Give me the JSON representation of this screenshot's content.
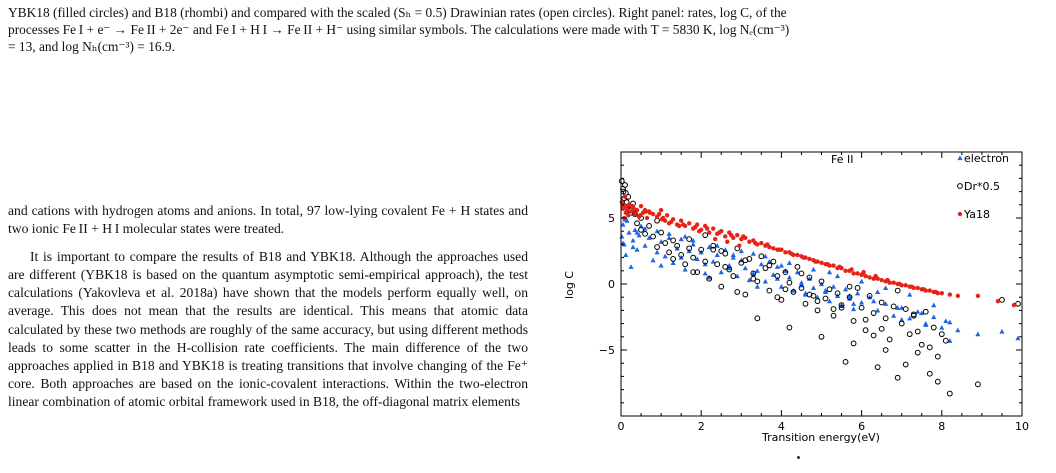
{
  "caption": {
    "line1": "YBK18 (filled circles) and B18 (rhombi) and compared with the scaled (Sₕ = 0.5) Drawinian rates (open circles). Right panel: rates, log C, of the",
    "line2": "processes Fe I + e⁻ → Fe II + 2e⁻ and Fe I + H I → Fe II + H⁻ using similar symbols. The calculations were made with T = 5830 K, log Nₑ(cm⁻³)",
    "line3": "= 13, and log Nₕ(cm⁻³) = 16.9."
  },
  "body": {
    "para1": "and cations with hydrogen atoms and anions. In total, 97 low-lying covalent Fe + H states and two ionic Fe II + H I molecular states were treated.",
    "para2": "It is important to compare the results of B18 and YBK18. Although the approaches used are different (YBK18 is based on the quantum asymptotic semi-empirical approach), the test calculations (Yakovleva et al. 2018a) have shown that the models perform equally well, on average. This does not mean that the results are identical. This means that atomic data calculated by these two methods are roughly of the same accuracy, but using different methods leads to some scatter in the H-collision rate coefficients. The main difference of the two approaches applied in B18 and YBK18 is treating transitions that involve changing of the Fe⁺ core. Both approaches are based on the ionic-covalent interactions. Within the two-electron linear combination of atomic orbital framework used in B18, the off-diagonal matrix elements"
  },
  "chart_data": {
    "type": "scatter",
    "title": "",
    "annotation": "Fe II",
    "xlabel": "Transition energy(eV)",
    "ylabel": "log C",
    "xlim": [
      0,
      10
    ],
    "ylim": [
      -10,
      10
    ],
    "xticks": [
      "0",
      "2",
      "4",
      "6",
      "8",
      "10"
    ],
    "yticks": [
      "5",
      "0",
      "−5"
    ],
    "legend_position": "top-right",
    "grid": false,
    "series": [
      {
        "name": "electron",
        "marker": "triangle",
        "color": "#1f66e5",
        "x": [
          0.02,
          0.05,
          0.08,
          0.12,
          0.15,
          0.2,
          0.25,
          0.3,
          0.35,
          0.4,
          0.45,
          0.5,
          0.6,
          0.7,
          0.8,
          0.9,
          1.0,
          1.1,
          1.2,
          1.3,
          1.4,
          1.5,
          1.6,
          1.7,
          1.8,
          1.9,
          2.0,
          2.1,
          2.2,
          2.3,
          2.4,
          2.5,
          2.6,
          2.7,
          2.8,
          2.9,
          3.0,
          3.1,
          3.2,
          3.3,
          3.4,
          3.5,
          3.6,
          3.7,
          3.8,
          3.9,
          4.0,
          4.1,
          4.2,
          4.3,
          4.4,
          4.5,
          4.6,
          4.7,
          4.8,
          4.9,
          5.0,
          5.1,
          5.2,
          5.3,
          5.4,
          5.5,
          5.6,
          5.7,
          5.8,
          5.9,
          6.0,
          6.2,
          6.4,
          6.6,
          6.8,
          7.0,
          7.2,
          7.4,
          7.6,
          7.8,
          8.0,
          8.2,
          8.4,
          8.9,
          9.5,
          9.9,
          0.1,
          0.3,
          0.6,
          0.9,
          1.2,
          1.5,
          1.8,
          2.1,
          2.4,
          2.7,
          3.0,
          3.3,
          3.6,
          3.9,
          4.2,
          4.5,
          4.8,
          5.1,
          5.4,
          5.7,
          6.0,
          6.3,
          6.6,
          6.9,
          7.2,
          7.5,
          7.8,
          8.1,
          0.05,
          0.4,
          1.0,
          1.6,
          2.2,
          2.8,
          3.4,
          4.0,
          4.6,
          5.2,
          5.8,
          6.4,
          7.0,
          7.6,
          8.2
        ],
        "y": [
          3.6,
          4.5,
          3.0,
          2.2,
          4.8,
          3.9,
          1.3,
          3.3,
          4.1,
          2.6,
          3.7,
          4.4,
          2.9,
          3.5,
          1.8,
          4.0,
          3.2,
          2.1,
          3.8,
          1.6,
          2.7,
          3.4,
          1.1,
          2.5,
          3.0,
          1.9,
          2.4,
          0.8,
          2.8,
          1.7,
          2.2,
          0.9,
          2.6,
          1.4,
          2.0,
          0.6,
          1.8,
          1.2,
          0.3,
          2.3,
          1.0,
          1.5,
          0.2,
          1.7,
          0.7,
          1.3,
          -0.2,
          1.0,
          0.5,
          -0.5,
          0.9,
          0.1,
          -0.7,
          0.4,
          -0.3,
          -1.0,
          0.0,
          -0.6,
          -1.3,
          -0.2,
          -0.9,
          -1.6,
          -0.4,
          -1.1,
          -1.9,
          -0.7,
          -1.4,
          -1.0,
          -2.0,
          -1.5,
          -2.4,
          -1.8,
          -2.6,
          -2.1,
          -3.0,
          -2.5,
          -3.3,
          -2.9,
          -3.5,
          -3.8,
          -3.6,
          -4.1,
          4.9,
          2.8,
          4.2,
          2.4,
          3.5,
          2.0,
          3.3,
          1.5,
          2.9,
          1.2,
          2.5,
          0.8,
          2.1,
          0.4,
          1.6,
          -0.1,
          1.1,
          -0.5,
          0.6,
          -0.9,
          0.2,
          -1.3,
          -0.3,
          -1.8,
          -0.8,
          -2.2,
          -1.6,
          -2.8,
          3.1,
          3.9,
          1.4,
          3.6,
          0.5,
          2.2,
          -0.2,
          1.4,
          -0.8,
          0.9,
          -1.5,
          -0.6,
          -2.7,
          -3.1,
          -4.3
        ]
      },
      {
        "name": "Dr*0.5",
        "marker": "open-circle",
        "color": "#000000",
        "x": [
          0.02,
          0.05,
          0.08,
          0.1,
          0.12,
          0.15,
          0.18,
          0.2,
          0.25,
          0.3,
          0.35,
          0.4,
          0.5,
          0.6,
          0.7,
          0.8,
          0.9,
          1.0,
          1.1,
          1.2,
          1.3,
          1.4,
          1.5,
          1.6,
          1.7,
          1.8,
          1.9,
          2.0,
          2.1,
          2.2,
          2.3,
          2.4,
          2.5,
          2.6,
          2.7,
          2.8,
          2.9,
          3.0,
          3.1,
          3.2,
          3.3,
          3.4,
          3.5,
          3.6,
          3.7,
          3.8,
          3.9,
          4.0,
          4.1,
          4.2,
          4.3,
          4.4,
          4.5,
          4.6,
          4.7,
          4.8,
          4.9,
          5.0,
          5.1,
          5.2,
          5.3,
          5.4,
          5.5,
          5.6,
          5.7,
          5.8,
          5.9,
          6.0,
          6.1,
          6.2,
          6.3,
          6.4,
          6.5,
          6.6,
          6.7,
          6.8,
          6.9,
          7.0,
          7.1,
          7.2,
          7.3,
          7.4,
          7.5,
          7.6,
          7.7,
          7.8,
          7.9,
          8.0,
          8.2,
          8.9,
          9.5,
          9.9,
          0.06,
          0.14,
          0.22,
          0.5,
          0.9,
          1.3,
          1.7,
          2.1,
          2.5,
          2.9,
          3.3,
          3.7,
          4.1,
          4.5,
          4.9,
          5.3,
          5.7,
          6.1,
          6.5,
          6.9,
          7.3,
          7.7,
          1.8,
          2.6,
          3.4,
          4.2,
          5.0,
          5.8,
          6.6,
          7.4,
          2.3,
          3.1,
          3.9,
          4.7,
          5.5,
          6.3,
          7.1,
          7.9,
          8.1
        ],
        "y": [
          7.8,
          7.2,
          6.5,
          7.5,
          6.9,
          5.8,
          6.6,
          5.9,
          5.4,
          6.1,
          5.3,
          4.6,
          5.0,
          3.8,
          4.4,
          3.6,
          2.8,
          3.9,
          3.1,
          2.4,
          1.9,
          2.9,
          2.2,
          1.5,
          3.4,
          2.0,
          0.9,
          2.6,
          1.7,
          0.4,
          2.9,
          1.5,
          -0.2,
          2.3,
          1.1,
          0.6,
          2.7,
          1.6,
          -0.8,
          1.9,
          0.8,
          0.2,
          2.1,
          1.2,
          -0.5,
          1.7,
          0.6,
          -1.2,
          0.9,
          0.1,
          -0.6,
          1.3,
          -0.3,
          -1.5,
          0.5,
          -0.9,
          -2.0,
          0.2,
          -1.1,
          -0.4,
          -2.4,
          -0.7,
          -1.6,
          -5.9,
          -1.0,
          -2.8,
          -0.3,
          -1.8,
          -3.5,
          -0.9,
          -2.2,
          -6.3,
          -1.4,
          -2.6,
          -4.2,
          -1.7,
          -7.1,
          -3.0,
          -1.9,
          -3.8,
          -2.4,
          -5.2,
          -4.6,
          -2.1,
          -6.8,
          -3.3,
          -7.4,
          -3.8,
          -8.3,
          -7.6,
          -1.2,
          -1.5,
          7.0,
          6.2,
          5.6,
          4.1,
          4.8,
          3.3,
          2.7,
          3.7,
          2.5,
          -0.6,
          0.4,
          1.4,
          -0.4,
          0.8,
          -1.3,
          -1.9,
          -0.2,
          -2.7,
          -3.4,
          -0.5,
          -2.3,
          -4.8,
          0.9,
          1.3,
          -2.6,
          -3.3,
          -4.0,
          -4.5,
          -5.0,
          -3.6,
          2.6,
          1.8,
          -1.0,
          -0.8,
          -1.8,
          -3.9,
          -6.1,
          -5.5,
          -4.3
        ]
      },
      {
        "name": "Ya18",
        "marker": "filled-circle",
        "color": "#e52318",
        "x": [
          0.02,
          0.05,
          0.08,
          0.1,
          0.12,
          0.15,
          0.18,
          0.2,
          0.25,
          0.3,
          0.35,
          0.4,
          0.45,
          0.5,
          0.55,
          0.6,
          0.65,
          0.7,
          0.8,
          0.9,
          1.0,
          1.05,
          1.1,
          1.15,
          1.2,
          1.3,
          1.4,
          1.5,
          1.6,
          1.7,
          1.8,
          1.9,
          2.0,
          2.1,
          2.2,
          2.3,
          2.4,
          2.5,
          2.6,
          2.7,
          2.8,
          2.9,
          3.0,
          3.1,
          3.2,
          3.3,
          3.4,
          3.5,
          3.6,
          3.7,
          3.8,
          3.9,
          4.0,
          4.1,
          4.2,
          4.3,
          4.4,
          4.5,
          4.6,
          4.7,
          4.8,
          4.9,
          5.0,
          5.1,
          5.2,
          5.3,
          5.4,
          5.5,
          5.6,
          5.7,
          5.8,
          5.9,
          6.0,
          6.1,
          6.2,
          6.3,
          6.4,
          6.5,
          6.6,
          6.7,
          6.8,
          6.9,
          7.0,
          7.1,
          7.2,
          7.3,
          7.4,
          7.5,
          7.6,
          7.7,
          7.8,
          7.9,
          8.0,
          8.2,
          8.4,
          8.9,
          9.4,
          9.8,
          0.04,
          0.16,
          0.32,
          0.48,
          0.72,
          0.95,
          1.25,
          1.55,
          1.85,
          2.15,
          2.45,
          2.75,
          3.05,
          3.35,
          3.65,
          3.95,
          4.25,
          4.55,
          4.85,
          5.15,
          5.45,
          5.75,
          6.05,
          6.35,
          6.65,
          6.95,
          7.25,
          7.55,
          7.85,
          0.07,
          0.28,
          0.62,
          1.02,
          1.45,
          1.95,
          2.35,
          2.65,
          2.95
        ],
        "y": [
          6.2,
          5.7,
          5.0,
          6.6,
          5.4,
          5.9,
          5.2,
          6.0,
          5.5,
          5.8,
          5.3,
          5.6,
          5.1,
          5.9,
          5.4,
          5.6,
          5.0,
          5.5,
          5.3,
          5.1,
          5.6,
          5.0,
          4.8,
          5.2,
          4.6,
          4.9,
          4.5,
          4.8,
          4.4,
          4.6,
          4.2,
          4.5,
          4.1,
          4.4,
          3.9,
          4.2,
          3.8,
          4.0,
          3.6,
          3.9,
          3.5,
          3.7,
          3.4,
          3.5,
          3.2,
          3.3,
          3.0,
          3.1,
          2.9,
          2.8,
          2.7,
          2.6,
          2.6,
          2.4,
          2.4,
          2.2,
          2.2,
          2.1,
          2.0,
          1.9,
          1.8,
          1.7,
          1.6,
          1.5,
          1.4,
          1.4,
          1.2,
          1.2,
          1.0,
          1.0,
          0.8,
          0.8,
          0.7,
          0.6,
          0.5,
          0.4,
          0.4,
          0.3,
          0.2,
          0.1,
          0.1,
          0.0,
          -0.1,
          -0.1,
          -0.2,
          -0.3,
          -0.3,
          -0.4,
          -0.5,
          -0.5,
          -0.6,
          -0.7,
          -0.7,
          -0.8,
          -0.9,
          -0.9,
          -1.3,
          -1.6,
          6.0,
          5.6,
          5.7,
          5.2,
          5.4,
          5.3,
          4.7,
          4.5,
          4.3,
          4.2,
          3.9,
          3.7,
          3.6,
          3.1,
          3.0,
          2.6,
          2.3,
          2.0,
          1.7,
          1.5,
          1.3,
          1.1,
          0.9,
          0.6,
          0.3,
          0.0,
          -0.2,
          -0.4,
          -0.6,
          5.8,
          5.9,
          5.5,
          4.9,
          4.4,
          4.0,
          3.4,
          3.2,
          2.9
        ]
      }
    ]
  }
}
